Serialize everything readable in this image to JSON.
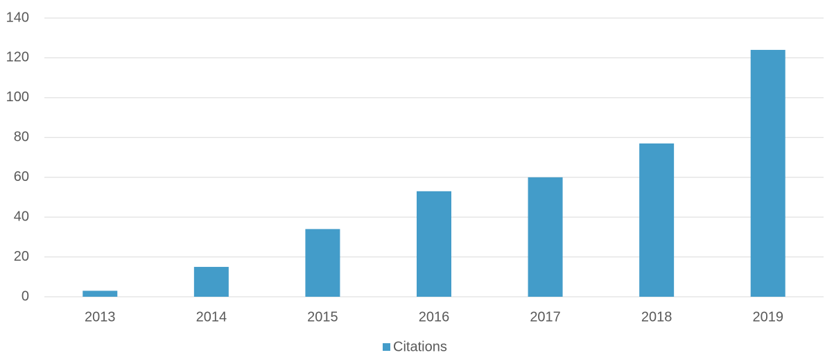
{
  "chart_data": {
    "type": "bar",
    "categories": [
      "2013",
      "2014",
      "2015",
      "2016",
      "2017",
      "2018",
      "2019"
    ],
    "series": [
      {
        "name": "Citations",
        "color": "#439cc9",
        "values": [
          3,
          15,
          34,
          53,
          60,
          77,
          124
        ]
      }
    ],
    "ylim": [
      0,
      140
    ],
    "yticks": [
      0,
      20,
      40,
      60,
      80,
      100,
      120,
      140
    ],
    "grid": true,
    "legend": "bottom"
  }
}
